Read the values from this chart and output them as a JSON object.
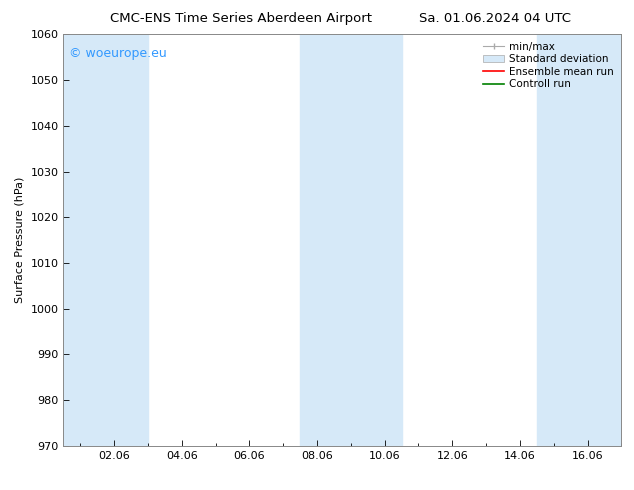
{
  "title_left": "CMC-ENS Time Series Aberdeen Airport",
  "title_right": "Sa. 01.06.2024 04 UTC",
  "ylabel": "Surface Pressure (hPa)",
  "ylim": [
    970,
    1060
  ],
  "yticks": [
    970,
    980,
    990,
    1000,
    1010,
    1020,
    1030,
    1040,
    1050,
    1060
  ],
  "xlim": [
    0.5,
    17.0
  ],
  "xtick_labels": [
    "02.06",
    "04.06",
    "06.06",
    "08.06",
    "10.06",
    "12.06",
    "14.06",
    "16.06"
  ],
  "xtick_positions": [
    2,
    4,
    6,
    8,
    10,
    12,
    14,
    16
  ],
  "bg_color": "#ffffff",
  "plot_bg_color": "#ffffff",
  "shaded_bands": [
    {
      "x_start": 0.5,
      "x_end": 3.0,
      "color": "#d6e9f8",
      "alpha": 1.0
    },
    {
      "x_start": 7.5,
      "x_end": 10.5,
      "color": "#d6e9f8",
      "alpha": 1.0
    },
    {
      "x_start": 14.5,
      "x_end": 17.0,
      "color": "#d6e9f8",
      "alpha": 1.0
    }
  ],
  "legend_items": [
    {
      "label": "min/max",
      "color": "#aaaaaa",
      "type": "errorbar"
    },
    {
      "label": "Standard deviation",
      "color": "#d6e9f8",
      "type": "bar"
    },
    {
      "label": "Ensemble mean run",
      "color": "#ff0000",
      "type": "line"
    },
    {
      "label": "Controll run",
      "color": "#008000",
      "type": "line"
    }
  ],
  "watermark_text": "© woeurope.eu",
  "watermark_color": "#3399ff",
  "watermark_fontsize": 9,
  "title_fontsize": 9.5,
  "axis_label_fontsize": 8,
  "tick_fontsize": 8,
  "legend_fontsize": 7.5
}
